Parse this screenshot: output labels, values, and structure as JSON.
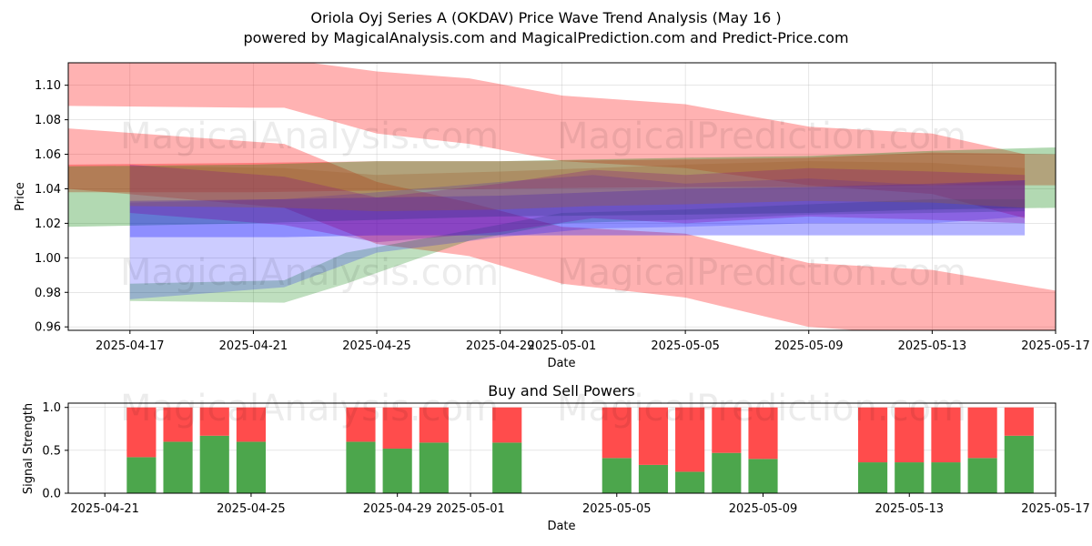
{
  "title_line1": "Oriola Oyj Series A (OKDAV) Price Wave Trend Analysis (May 16 )",
  "title_line2": "powered by MagicalAnalysis.com and MagicalPrediction.com and Predict-Price.com",
  "watermarks": [
    "MagicalAnalysis.com",
    "MagicalPrediction.com"
  ],
  "chart_data": [
    {
      "type": "area",
      "title": "",
      "xlabel": "Date",
      "ylabel": "Price",
      "xlim": [
        "2025-04-15",
        "2025-05-17"
      ],
      "ylim": [
        0.958,
        1.113
      ],
      "grid": true,
      "x_ticks": [
        "2025-04-17",
        "2025-04-21",
        "2025-04-25",
        "2025-04-29",
        "2025-05-01",
        "2025-05-05",
        "2025-05-09",
        "2025-05-13",
        "2025-05-17"
      ],
      "y_ticks": [
        "0.96",
        "0.98",
        "1.00",
        "1.02",
        "1.04",
        "1.06",
        "1.08",
        "1.10"
      ],
      "bands": [
        {
          "color": "#ff0000",
          "opacity": 0.3,
          "x": [
            "2025-04-15",
            "2025-04-21",
            "2025-04-22",
            "2025-04-25",
            "2025-04-28",
            "2025-05-01",
            "2025-05-05",
            "2025-05-09",
            "2025-05-13",
            "2025-05-16"
          ],
          "upper": [
            1.115,
            1.115,
            1.115,
            1.108,
            1.104,
            1.094,
            1.089,
            1.076,
            1.072,
            1.06
          ],
          "lower": [
            1.088,
            1.087,
            1.087,
            1.072,
            1.066,
            1.056,
            1.052,
            1.042,
            1.037,
            1.023
          ]
        },
        {
          "color": "#ff0000",
          "opacity": 0.3,
          "x": [
            "2025-04-15",
            "2025-04-22",
            "2025-04-25",
            "2025-04-28",
            "2025-05-01",
            "2025-05-05",
            "2025-05-09",
            "2025-05-13",
            "2025-05-17"
          ],
          "upper": [
            1.075,
            1.066,
            1.044,
            1.032,
            1.018,
            1.014,
            0.997,
            0.993,
            0.981
          ],
          "lower": [
            1.04,
            1.029,
            1.008,
            1.001,
            0.985,
            0.977,
            0.96,
            0.955,
            0.956
          ]
        },
        {
          "color": "#ff0000",
          "opacity": 0.3,
          "x": [
            "2025-04-15",
            "2025-04-21",
            "2025-04-25",
            "2025-04-29",
            "2025-05-05",
            "2025-05-09",
            "2025-05-13",
            "2025-05-17"
          ],
          "upper": [
            1.054,
            1.055,
            1.056,
            1.056,
            1.057,
            1.058,
            1.061,
            1.06
          ],
          "lower": [
            1.038,
            1.038,
            1.039,
            1.04,
            1.041,
            1.041,
            1.042,
            1.042
          ]
        },
        {
          "color": "#008000",
          "opacity": 0.3,
          "x": [
            "2025-04-15",
            "2025-04-21",
            "2025-04-25",
            "2025-04-29",
            "2025-05-05",
            "2025-05-09",
            "2025-05-13",
            "2025-05-17"
          ],
          "upper": [
            1.053,
            1.054,
            1.056,
            1.056,
            1.058,
            1.059,
            1.062,
            1.064
          ],
          "lower": [
            1.018,
            1.02,
            1.022,
            1.024,
            1.025,
            1.026,
            1.028,
            1.029
          ]
        },
        {
          "color": "#008000",
          "opacity": 0.25,
          "x": [
            "2025-04-17",
            "2025-04-22",
            "2025-04-24",
            "2025-04-28",
            "2025-05-01",
            "2025-05-05",
            "2025-05-09",
            "2025-05-13",
            "2025-05-16"
          ],
          "upper": [
            0.985,
            0.987,
            1.003,
            1.016,
            1.026,
            1.028,
            1.031,
            1.034,
            1.034
          ],
          "lower": [
            0.975,
            0.974,
            0.985,
            1.01,
            1.02,
            1.022,
            1.025,
            1.026,
            1.027
          ]
        },
        {
          "color": "#0000ff",
          "opacity": 0.2,
          "x": [
            "2025-04-17",
            "2025-04-22",
            "2025-04-25",
            "2025-04-29",
            "2025-05-02",
            "2025-05-05",
            "2025-05-09",
            "2025-05-13",
            "2025-05-16"
          ],
          "upper": [
            1.032,
            1.034,
            1.038,
            1.044,
            1.048,
            1.043,
            1.046,
            1.042,
            1.045
          ],
          "lower": [
            0.976,
            0.983,
            1.003,
            1.012,
            1.017,
            1.018,
            1.02,
            1.02,
            1.024
          ]
        },
        {
          "color": "#0000ff",
          "opacity": 0.3,
          "x": [
            "2025-04-17",
            "2025-04-22",
            "2025-04-25",
            "2025-04-29",
            "2025-05-02",
            "2025-05-05",
            "2025-05-09",
            "2025-05-13",
            "2025-05-16"
          ],
          "upper": [
            1.033,
            1.034,
            1.035,
            1.036,
            1.038,
            1.04,
            1.041,
            1.043,
            1.045
          ],
          "lower": [
            1.012,
            1.012,
            1.013,
            1.013,
            1.013,
            1.013,
            1.013,
            1.013,
            1.013
          ]
        },
        {
          "color": "#8000a0",
          "opacity": 0.3,
          "x": [
            "2025-04-17",
            "2025-04-22",
            "2025-04-25",
            "2025-04-29",
            "2025-05-02",
            "2025-05-05",
            "2025-05-09",
            "2025-05-13",
            "2025-05-16"
          ],
          "upper": [
            1.054,
            1.047,
            1.035,
            1.043,
            1.051,
            1.048,
            1.052,
            1.05,
            1.048
          ],
          "lower": [
            1.026,
            1.019,
            1.009,
            1.015,
            1.023,
            1.02,
            1.024,
            1.022,
            1.02
          ]
        },
        {
          "color": "#a06030",
          "opacity": 0.3,
          "x": [
            "2025-04-17",
            "2025-04-22",
            "2025-04-25",
            "2025-04-29",
            "2025-05-02",
            "2025-05-05",
            "2025-05-09",
            "2025-05-13",
            "2025-05-16"
          ],
          "upper": [
            1.053,
            1.052,
            1.048,
            1.05,
            1.052,
            1.054,
            1.056,
            1.055,
            1.052
          ],
          "lower": [
            1.03,
            1.029,
            1.027,
            1.028,
            1.03,
            1.031,
            1.033,
            1.032,
            1.029
          ]
        }
      ]
    },
    {
      "type": "bar",
      "title": "Buy and Sell Powers",
      "xlabel": "Date",
      "ylabel": "Signal Strength",
      "xlim": [
        "2025-04-20",
        "2025-05-17"
      ],
      "ylim": [
        0,
        1.05
      ],
      "grid": true,
      "x_ticks": [
        "2025-04-21",
        "2025-04-25",
        "2025-04-29",
        "2025-05-01",
        "2025-05-05",
        "2025-05-09",
        "2025-05-13",
        "2025-05-17"
      ],
      "y_ticks": [
        "0.0",
        "0.5",
        "1.0"
      ],
      "buy_color": "#4ca64c",
      "sell_color": "#ff4c4c",
      "dates": [
        "2025-04-22",
        "2025-04-23",
        "2025-04-24",
        "2025-04-25",
        "2025-04-28",
        "2025-04-29",
        "2025-04-30",
        "2025-05-02",
        "2025-05-05",
        "2025-05-06",
        "2025-05-07",
        "2025-05-08",
        "2025-05-09",
        "2025-05-12",
        "2025-05-13",
        "2025-05-14",
        "2025-05-15",
        "2025-05-16"
      ],
      "series": [
        {
          "values": [
            0.42,
            0.6,
            0.67,
            0.6,
            0.6,
            0.52,
            0.59,
            0.59,
            0.41,
            0.33,
            0.25,
            0.47,
            0.4,
            0.36,
            0.36,
            0.36,
            0.41,
            0.67
          ]
        },
        {
          "values": [
            0.58,
            0.4,
            0.33,
            0.4,
            0.4,
            0.48,
            0.41,
            0.41,
            0.59,
            0.67,
            0.75,
            0.53,
            0.6,
            0.64,
            0.64,
            0.64,
            0.59,
            0.33
          ]
        }
      ]
    }
  ]
}
